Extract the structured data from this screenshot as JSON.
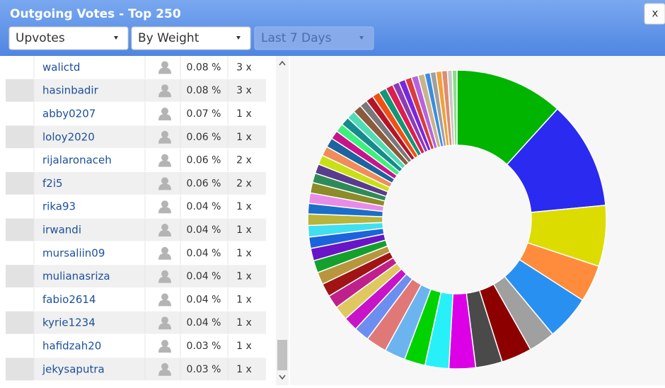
{
  "header": {
    "title": "Outgoing Votes - Top 250",
    "close": "x"
  },
  "filters": [
    "Upvotes",
    "By Weight",
    "Last 7 Days"
  ],
  "table": {
    "rows": [
      [
        "walictd",
        "0.08 %",
        "3 x"
      ],
      [
        "hasinbadir",
        "0.08 %",
        "3 x"
      ],
      [
        "abby0207",
        "0.07 %",
        "1 x"
      ],
      [
        "loloy2020",
        "0.06 %",
        "1 x"
      ],
      [
        "rijalaronaceh",
        "0.06 %",
        "2 x"
      ],
      [
        "f2i5",
        "0.06 %",
        "2 x"
      ],
      [
        "rika93",
        "0.04 %",
        "1 x"
      ],
      [
        "irwandi",
        "0.04 %",
        "1 x"
      ],
      [
        "mursaliin09",
        "0.04 %",
        "1 x"
      ],
      [
        "mulianasriza",
        "0.04 %",
        "1 x"
      ],
      [
        "fabio2614",
        "0.04 %",
        "1 x"
      ],
      [
        "kyrie1234",
        "0.04 %",
        "1 x"
      ],
      [
        "hafidzah20",
        "0.03 %",
        "1 x"
      ],
      [
        "jekysaputra",
        "0.03 %",
        "1 x"
      ]
    ]
  },
  "donut": {
    "type": "pie",
    "values": [
      11.4,
      11.4,
      6.4,
      3.9,
      4.7,
      2.8,
      3.2,
      2.8,
      2.8,
      2.5,
      2.2,
      2.2,
      2.2,
      1.6,
      1.5,
      1.5,
      1.4,
      1.4,
      1.3,
      1.3,
      1.3,
      1.2,
      1.2,
      1.2,
      1.1,
      1.1,
      1.1,
      1.0,
      1.0,
      1.0,
      1.0,
      1.0,
      0.9,
      0.9,
      0.9,
      0.9,
      0.9,
      0.8,
      0.8,
      0.8,
      0.8,
      0.8,
      0.7,
      0.7,
      0.7,
      0.7,
      0.7,
      0.6,
      0.6,
      0.6,
      0.6,
      0.5,
      0.5
    ],
    "colors": [
      "#00b400",
      "#2a2af0",
      "#dcdc00",
      "#ff8c3c",
      "#2890f0",
      "#a0a0a0",
      "#8c0000",
      "#4a4a4a",
      "#dc00e6",
      "#28f0f8",
      "#00d200",
      "#6cb4f0",
      "#e07878",
      "#6c8ef0",
      "#c814c8",
      "#e0c860",
      "#c0208c",
      "#a01414",
      "#b8963c",
      "#14a02c",
      "#6a14c8",
      "#1c64dc",
      "#40e0f0",
      "#b8b43c",
      "#1c6ec8",
      "#e88ce8",
      "#8c8c28",
      "#2e8b57",
      "#5a3c8c",
      "#c8e014",
      "#f08c5a",
      "#1c64a0",
      "#c8148c",
      "#3cf07c",
      "#148c8c",
      "#50dcb4",
      "#8c5a3c",
      "#787878",
      "#b41428",
      "#f05014",
      "#149678",
      "#dc1e50",
      "#8c3cb4",
      "#7828dc",
      "#dc3c3c",
      "#b464dc",
      "#c8b48c",
      "#3c8cdc",
      "#a0a0a0",
      "#f0a03c",
      "#e08c6e",
      "#c8c8c8",
      "#8cdc8c"
    ]
  }
}
